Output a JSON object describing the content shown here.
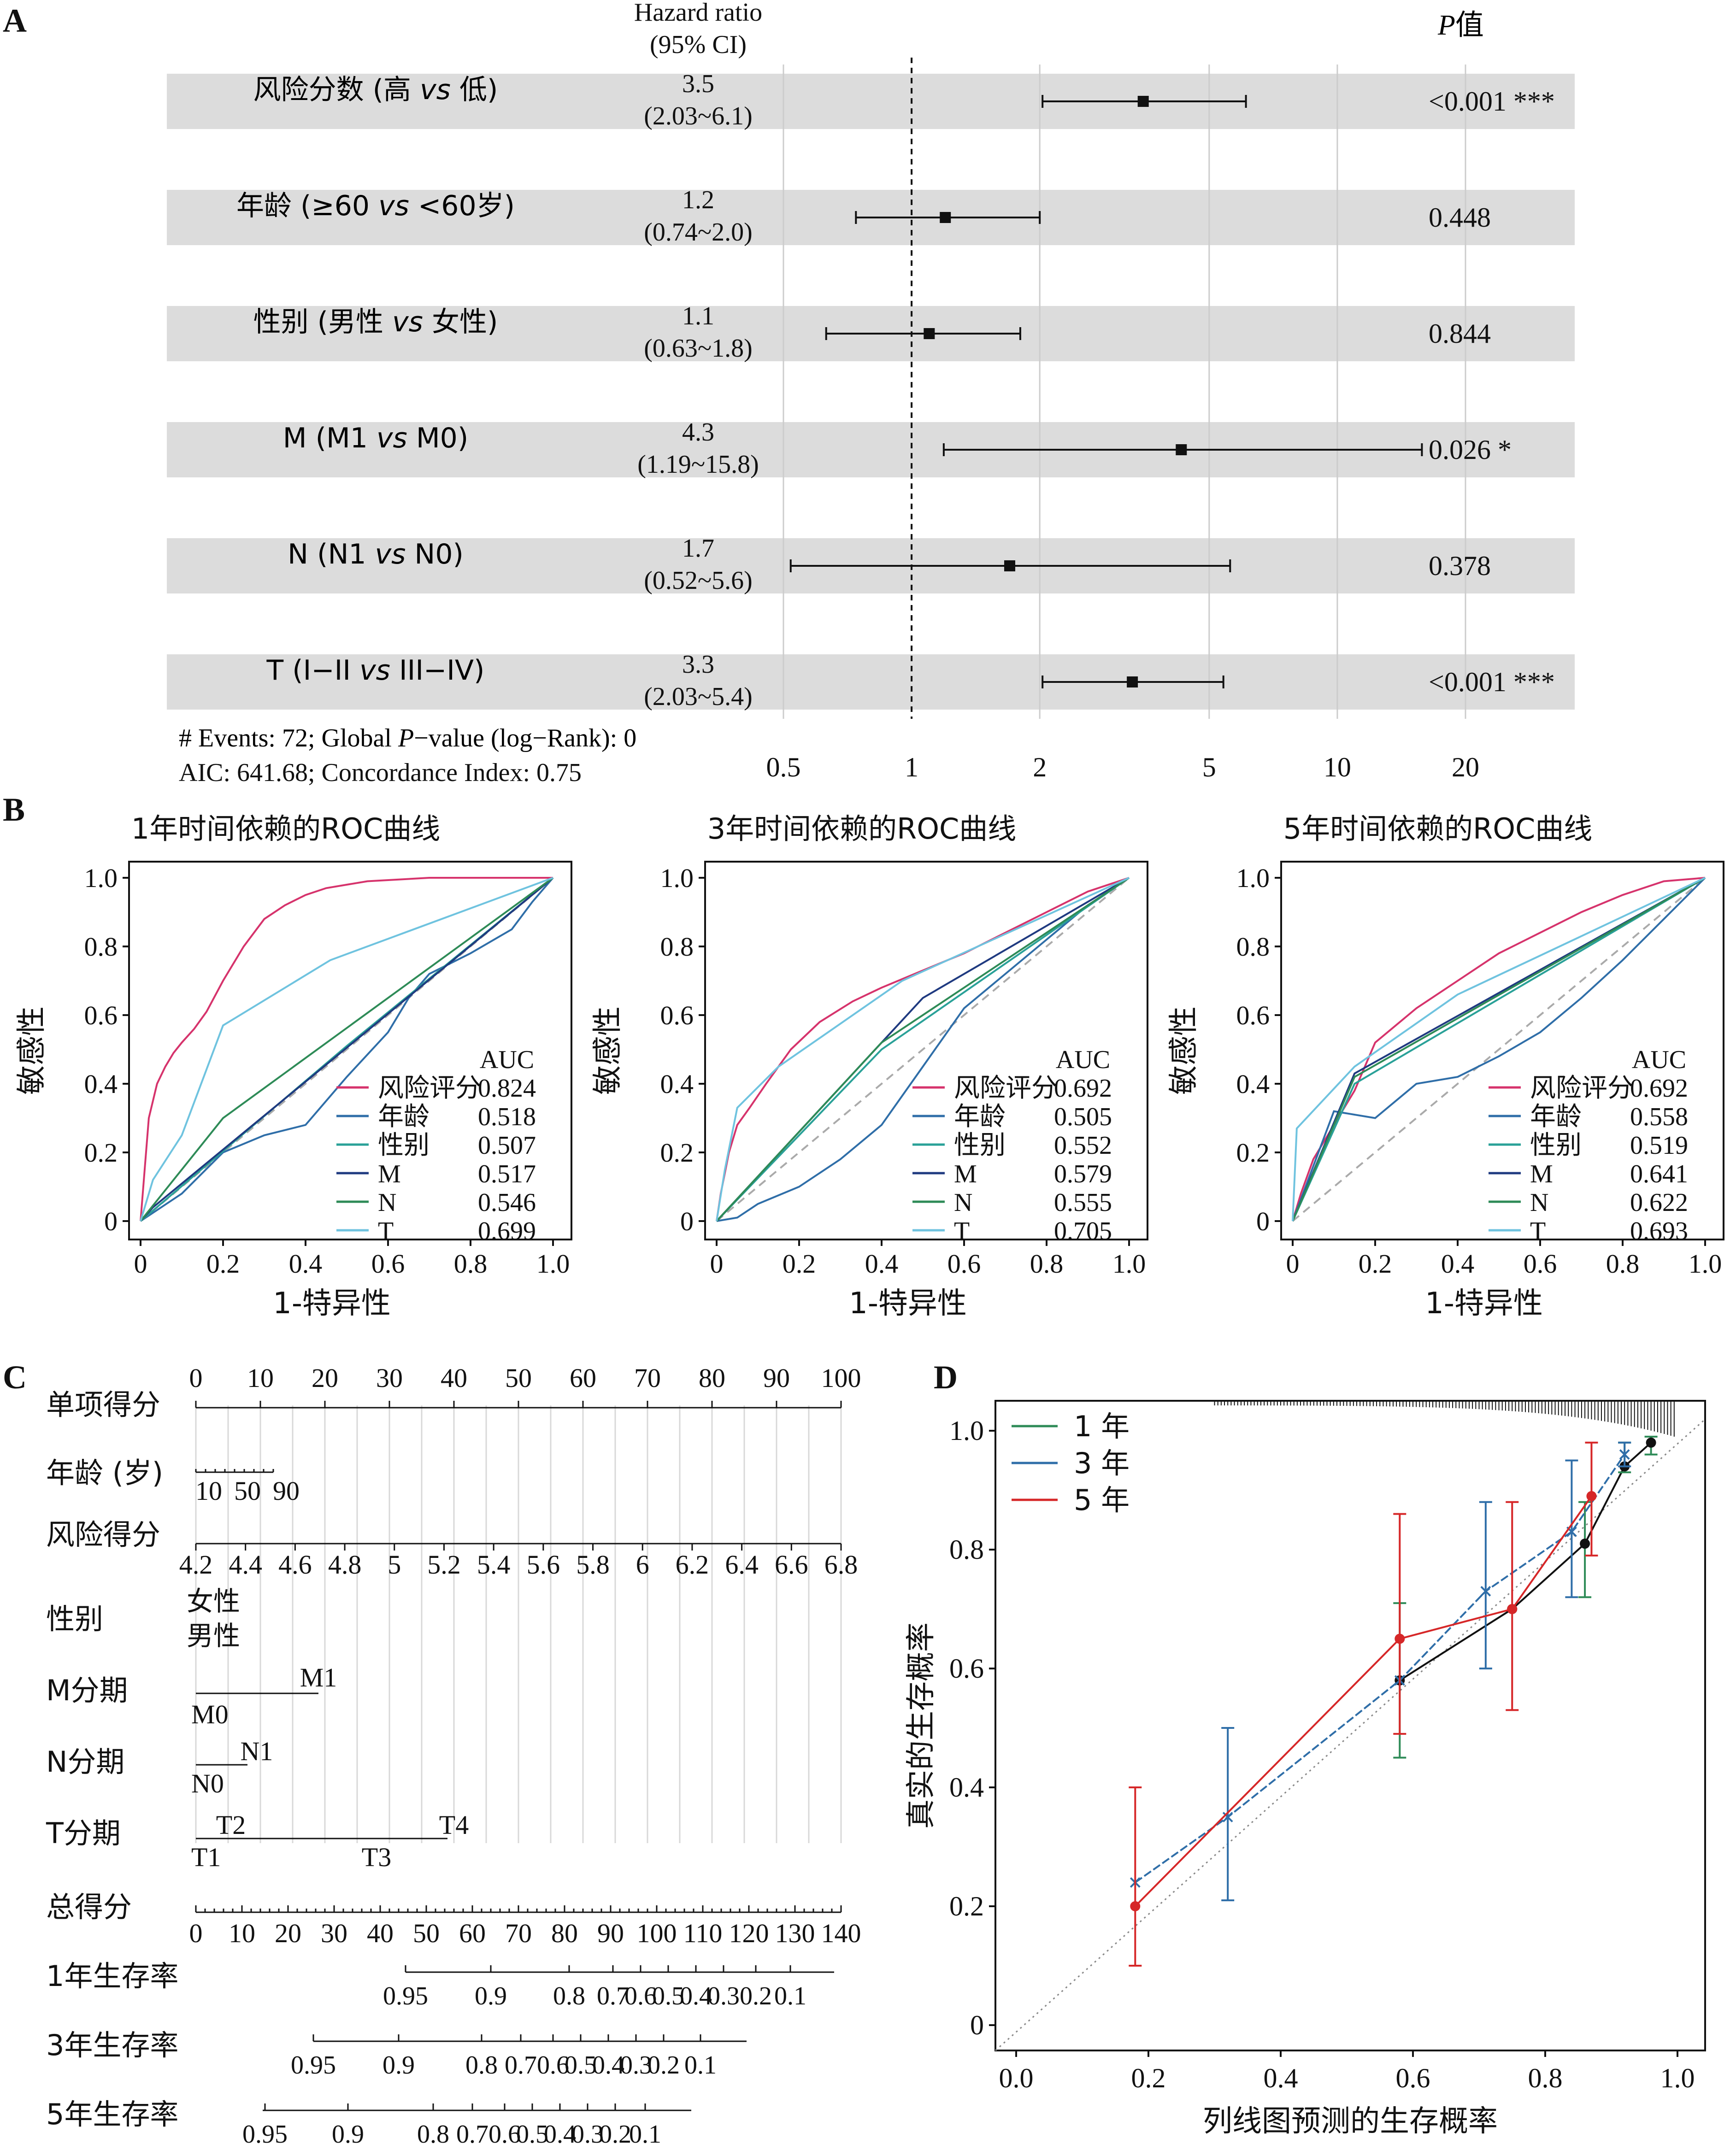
{
  "panel_labels": {
    "a": "A",
    "b": "B",
    "c": "C",
    "d": "D"
  },
  "forest": {
    "col_hr_title_1": "Hazard ratio",
    "col_hr_title_2": "(95% CI)",
    "col_p_title_italic": "P",
    "col_p_title_rest": "值",
    "rows": [
      {
        "label": "风险分数 (高 vs 低)",
        "hr": 3.5,
        "lo": 2.03,
        "hi": 6.1,
        "hr_text": "3.5",
        "ci_text": "(2.03~6.1)",
        "p_text": "<0.001 ***"
      },
      {
        "label": "年龄 (≥60 vs <60岁)",
        "hr": 1.2,
        "lo": 0.74,
        "hi": 2.0,
        "hr_text": "1.2",
        "ci_text": "(0.74~2.0)",
        "p_text": "0.448"
      },
      {
        "label": "性别 (男性 vs 女性)",
        "hr": 1.1,
        "lo": 0.63,
        "hi": 1.8,
        "hr_text": "1.1",
        "ci_text": "(0.63~1.8)",
        "p_text": "0.844"
      },
      {
        "label": "M (M1 vs M0)",
        "hr": 4.3,
        "lo": 1.19,
        "hi": 15.8,
        "hr_text": "4.3",
        "ci_text": "(1.19~15.8)",
        "p_text": "0.026 *"
      },
      {
        "label": "N (N1 vs N0)",
        "hr": 1.7,
        "lo": 0.52,
        "hi": 5.6,
        "hr_text": "1.7",
        "ci_text": "(0.52~5.6)",
        "p_text": "0.378"
      },
      {
        "label": "T (I−II vs III−IV)",
        "hr": 3.3,
        "lo": 2.03,
        "hi": 5.4,
        "hr_text": "3.3",
        "ci_text": "(2.03~5.4)",
        "p_text": "<0.001 ***"
      }
    ],
    "x_ticks": [
      0.5,
      1,
      2,
      5,
      10,
      20
    ],
    "x_tick_labels": [
      "0.5",
      "1",
      "2",
      "5",
      "10",
      "20"
    ],
    "footer_1": "# Events: 72; Global P−value (log−Rank): 0",
    "footer_2": "AIC: 641.68; Concordance Index: 0.75",
    "colors": {
      "row_band": "#dcdcdc",
      "grid": "#cccccc"
    }
  },
  "roc": {
    "xlabel": "1-特异性",
    "ylabel": "敏感性",
    "ticks": [
      "0",
      "0.2",
      "0.4",
      "0.6",
      "0.8",
      "1.0"
    ],
    "auc_header": "AUC",
    "colors": {
      "风险评分": "#d6336c",
      "年龄": "#2f6ea8",
      "性别": "#2aa198",
      "M": "#1f3a80",
      "N": "#2e8b57",
      "T": "#6fc3df"
    },
    "charts": [
      {
        "title": "1年时间依赖的ROC曲线",
        "legend": [
          {
            "name": "风险评分",
            "auc": "0.824"
          },
          {
            "name": "年龄",
            "auc": "0.518"
          },
          {
            "name": "性别",
            "auc": "0.507"
          },
          {
            "name": "M",
            "auc": "0.517"
          },
          {
            "name": "N",
            "auc": "0.546"
          },
          {
            "name": "T",
            "auc": "0.699"
          }
        ]
      },
      {
        "title": "3年时间依赖的ROC曲线",
        "legend": [
          {
            "name": "风险评分",
            "auc": "0.692"
          },
          {
            "name": "年龄",
            "auc": "0.505"
          },
          {
            "name": "性别",
            "auc": "0.552"
          },
          {
            "name": "M",
            "auc": "0.579"
          },
          {
            "name": "N",
            "auc": "0.555"
          },
          {
            "name": "T",
            "auc": "0.705"
          }
        ]
      },
      {
        "title": "5年时间依赖的ROC曲线",
        "legend": [
          {
            "name": "风险评分",
            "auc": "0.692"
          },
          {
            "name": "年龄",
            "auc": "0.558"
          },
          {
            "name": "性别",
            "auc": "0.519"
          },
          {
            "name": "M",
            "auc": "0.641"
          },
          {
            "name": "N",
            "auc": "0.622"
          },
          {
            "name": "T",
            "auc": "0.693"
          }
        ]
      }
    ]
  },
  "nomogram": {
    "rows": [
      {
        "label": "单项得分",
        "scale": "points"
      },
      {
        "label": "年龄 (岁)"
      },
      {
        "label": "风险得分"
      },
      {
        "label": "性别"
      },
      {
        "label": "M分期"
      },
      {
        "label": "N分期"
      },
      {
        "label": "T分期"
      },
      {
        "label": "总得分"
      },
      {
        "label": "1年生存率"
      },
      {
        "label": "3年生存率"
      },
      {
        "label": "5年生存率"
      }
    ],
    "points_ticks": [
      "0",
      "10",
      "20",
      "30",
      "40",
      "50",
      "60",
      "70",
      "80",
      "90",
      "100"
    ],
    "age_ticks": [
      "10",
      "50",
      "90"
    ],
    "risk_ticks": [
      "4.2",
      "4.4",
      "4.6",
      "4.8",
      "5",
      "5.2",
      "5.4",
      "5.6",
      "5.8",
      "6",
      "6.2",
      "6.4",
      "6.6",
      "6.8"
    ],
    "sex_labels": [
      "女性",
      "男性"
    ],
    "m_labels": [
      "M0",
      "M1"
    ],
    "n_labels": [
      "N0",
      "N1"
    ],
    "t_labels": [
      "T1",
      "T2",
      "T3",
      "T4"
    ],
    "total_ticks": [
      "0",
      "10",
      "20",
      "30",
      "40",
      "50",
      "60",
      "70",
      "80",
      "90",
      "100",
      "110",
      "120",
      "130",
      "140"
    ],
    "surv1_ticks": [
      "0.95",
      "0.9",
      "0.8",
      "0.7",
      "0.6",
      "0.5",
      "0.4",
      "0.3",
      "0.2",
      "0.1"
    ],
    "surv3_ticks": [
      "0.95",
      "0.9",
      "0.8",
      "0.7",
      "0.6",
      "0.5",
      "0.4",
      "0.3",
      "0.2",
      "0.1"
    ],
    "surv5_ticks": [
      "0.95",
      "0.9",
      "0.8",
      "0.7",
      "0.6",
      "0.5",
      "0.4",
      "0.3",
      "0.2",
      "0.1"
    ]
  },
  "calibration": {
    "xlabel": "列线图预测的生存概率",
    "ylabel": "真实的生存概率",
    "x_ticks": [
      "0.0",
      "0.2",
      "0.4",
      "0.6",
      "0.8",
      "1.0"
    ],
    "y_ticks": [
      "0",
      "0.2",
      "0.4",
      "0.6",
      "0.8",
      "1.0"
    ],
    "legend": [
      {
        "name": "1 年",
        "color": "#2e8b57"
      },
      {
        "name": "3 年",
        "color": "#2f6ea8"
      },
      {
        "name": "5 年",
        "color": "#d62728"
      }
    ]
  },
  "chart_data": [
    {
      "type": "scatter",
      "subtype": "forest",
      "x_scale": "log",
      "xlim": [
        0.5,
        20
      ],
      "categories": [
        "风险分数 (高 vs 低)",
        "年龄 (≥60 vs <60岁)",
        "性别 (男性 vs 女性)",
        "M (M1 vs M0)",
        "N (N1 vs N0)",
        "T (I−II vs III−IV)"
      ],
      "hr": [
        3.5,
        1.2,
        1.1,
        4.3,
        1.7,
        3.3
      ],
      "lower": [
        2.03,
        0.74,
        0.63,
        1.19,
        0.52,
        2.03
      ],
      "upper": [
        6.1,
        2.0,
        1.8,
        15.8,
        5.6,
        5.4
      ],
      "reference_line": 1
    },
    {
      "type": "line",
      "title": "1年时间依赖的ROC曲线",
      "xlabel": "1-特异性",
      "ylabel": "敏感性",
      "xlim": [
        0,
        1
      ],
      "ylim": [
        0,
        1
      ],
      "series": [
        {
          "name": "风险评分",
          "auc": 0.824,
          "x": [
            0,
            0.01,
            0.02,
            0.04,
            0.06,
            0.08,
            0.1,
            0.13,
            0.16,
            0.2,
            0.25,
            0.3,
            0.35,
            0.4,
            0.45,
            0.55,
            0.7,
            0.85,
            1.0
          ],
          "y": [
            0,
            0.15,
            0.3,
            0.4,
            0.45,
            0.49,
            0.52,
            0.56,
            0.61,
            0.7,
            0.8,
            0.88,
            0.92,
            0.95,
            0.97,
            0.99,
            1.0,
            1.0,
            1.0
          ]
        },
        {
          "name": "年龄",
          "auc": 0.518,
          "x": [
            0,
            0.1,
            0.2,
            0.3,
            0.4,
            0.5,
            0.6,
            0.65,
            0.7,
            0.8,
            0.9,
            0.95,
            1.0
          ],
          "y": [
            0,
            0.08,
            0.2,
            0.25,
            0.28,
            0.42,
            0.55,
            0.65,
            0.72,
            0.78,
            0.85,
            0.93,
            1.0
          ]
        },
        {
          "name": "性别",
          "auc": 0.507,
          "x": [
            0,
            0.5,
            1.0
          ],
          "y": [
            0,
            0.51,
            1.0
          ]
        },
        {
          "name": "M",
          "auc": 0.517,
          "x": [
            0,
            0.03,
            1.0
          ],
          "y": [
            0,
            0.04,
            1.0
          ]
        },
        {
          "name": "N",
          "auc": 0.546,
          "x": [
            0,
            0.2,
            1.0
          ],
          "y": [
            0,
            0.3,
            1.0
          ]
        },
        {
          "name": "T",
          "auc": 0.699,
          "x": [
            0,
            0.03,
            0.1,
            0.2,
            0.46,
            1.0
          ],
          "y": [
            0,
            0.12,
            0.25,
            0.57,
            0.76,
            1.0
          ]
        }
      ]
    },
    {
      "type": "line",
      "title": "3年时间依赖的ROC曲线",
      "xlabel": "1-特异性",
      "ylabel": "敏感性",
      "xlim": [
        0,
        1
      ],
      "ylim": [
        0,
        1
      ],
      "series": [
        {
          "name": "风险评分",
          "auc": 0.692,
          "x": [
            0,
            0.01,
            0.03,
            0.05,
            0.08,
            0.12,
            0.18,
            0.25,
            0.33,
            0.4,
            0.5,
            0.6,
            0.7,
            0.8,
            0.9,
            1.0
          ],
          "y": [
            0,
            0.08,
            0.2,
            0.28,
            0.33,
            0.4,
            0.5,
            0.58,
            0.64,
            0.68,
            0.73,
            0.78,
            0.84,
            0.9,
            0.96,
            1.0
          ]
        },
        {
          "name": "年龄",
          "auc": 0.505,
          "x": [
            0,
            0.05,
            0.1,
            0.2,
            0.3,
            0.4,
            0.5,
            0.6,
            0.7,
            0.8,
            0.9,
            1.0
          ],
          "y": [
            0,
            0.01,
            0.05,
            0.1,
            0.18,
            0.28,
            0.45,
            0.62,
            0.72,
            0.82,
            0.92,
            1.0
          ]
        },
        {
          "name": "性别",
          "auc": 0.552,
          "x": [
            0,
            0.4,
            1.0
          ],
          "y": [
            0,
            0.5,
            1.0
          ]
        },
        {
          "name": "M",
          "auc": 0.579,
          "x": [
            0,
            0.5,
            1.0
          ],
          "y": [
            0,
            0.65,
            1.0
          ]
        },
        {
          "name": "N",
          "auc": 0.555,
          "x": [
            0,
            0.4,
            1.0
          ],
          "y": [
            0,
            0.52,
            1.0
          ]
        },
        {
          "name": "T",
          "auc": 0.705,
          "x": [
            0,
            0.02,
            0.05,
            0.15,
            0.45,
            1.0
          ],
          "y": [
            0,
            0.15,
            0.33,
            0.45,
            0.7,
            1.0
          ]
        }
      ]
    },
    {
      "type": "line",
      "title": "5年时间依赖的ROC曲线",
      "xlabel": "1-特异性",
      "ylabel": "敏感性",
      "xlim": [
        0,
        1
      ],
      "ylim": [
        0,
        1
      ],
      "series": [
        {
          "name": "风险评分",
          "auc": 0.692,
          "x": [
            0,
            0.02,
            0.05,
            0.1,
            0.15,
            0.2,
            0.3,
            0.4,
            0.5,
            0.6,
            0.7,
            0.8,
            0.9,
            1.0
          ],
          "y": [
            0,
            0.08,
            0.18,
            0.28,
            0.38,
            0.52,
            0.62,
            0.7,
            0.78,
            0.84,
            0.9,
            0.95,
            0.99,
            1.0
          ]
        },
        {
          "name": "年龄",
          "auc": 0.558,
          "x": [
            0,
            0.1,
            0.2,
            0.3,
            0.4,
            0.5,
            0.6,
            0.7,
            0.8,
            0.9,
            1.0
          ],
          "y": [
            0,
            0.32,
            0.3,
            0.4,
            0.42,
            0.48,
            0.55,
            0.65,
            0.76,
            0.88,
            1.0
          ]
        },
        {
          "name": "性别",
          "auc": 0.519,
          "x": [
            0,
            0.15,
            1.0
          ],
          "y": [
            0,
            0.4,
            1.0
          ]
        },
        {
          "name": "M",
          "auc": 0.641,
          "x": [
            0,
            0.15,
            1.0
          ],
          "y": [
            0,
            0.43,
            1.0
          ]
        },
        {
          "name": "N",
          "auc": 0.622,
          "x": [
            0,
            0.15,
            1.0
          ],
          "y": [
            0,
            0.42,
            1.0
          ]
        },
        {
          "name": "T",
          "auc": 0.693,
          "x": [
            0,
            0.01,
            0.15,
            0.4,
            1.0
          ],
          "y": [
            0,
            0.27,
            0.45,
            0.66,
            1.0
          ]
        }
      ]
    },
    {
      "type": "line",
      "subtype": "calibration",
      "xlabel": "列线图预测的生存概率",
      "ylabel": "真实的生存概率",
      "xlim": [
        0,
        1.0
      ],
      "ylim": [
        0,
        1.0
      ],
      "series": [
        {
          "name": "1 年",
          "x": [
            0.58,
            0.75,
            0.86,
            0.92,
            0.96
          ],
          "y": [
            0.58,
            0.7,
            0.81,
            0.94,
            0.98
          ],
          "err_lo": [
            0.45,
            0.7,
            0.72,
            0.93,
            0.96
          ],
          "err_hi": [
            0.71,
            0.7,
            0.88,
            0.98,
            0.99
          ]
        },
        {
          "name": "3 年",
          "x": [
            0.18,
            0.32,
            0.58,
            0.71,
            0.84,
            0.92
          ],
          "y": [
            0.24,
            0.35,
            0.58,
            0.73,
            0.83,
            0.96
          ],
          "err_lo": [
            0.24,
            0.21,
            0.58,
            0.6,
            0.72,
            0.94
          ],
          "err_hi": [
            0.24,
            0.5,
            0.58,
            0.88,
            0.95,
            0.98
          ]
        },
        {
          "name": "5 年",
          "x": [
            0.18,
            0.58,
            0.75,
            0.87
          ],
          "y": [
            0.2,
            0.65,
            0.7,
            0.89
          ],
          "err_lo": [
            0.1,
            0.49,
            0.53,
            0.79
          ],
          "err_hi": [
            0.4,
            0.86,
            0.88,
            0.98
          ]
        }
      ]
    }
  ]
}
